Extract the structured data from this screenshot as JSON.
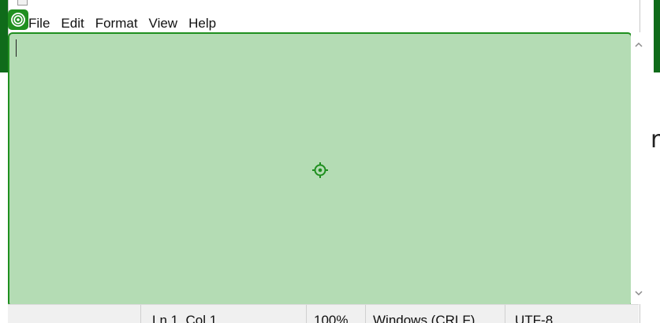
{
  "menu": {
    "file": "File",
    "edit": "Edit",
    "format": "Format",
    "view": "View",
    "help": "Help"
  },
  "editor": {
    "text": ""
  },
  "status": {
    "position": "Ln 1, Col 1",
    "zoom": "100%",
    "line_endings": "Windows (CRLF)",
    "encoding": "UTF-8"
  },
  "background_app": {
    "partial_char": "r"
  },
  "colors": {
    "highlight_fill": "#b4dcb4",
    "highlight_border": "#1f8f1f",
    "desktop_green": "#0f6b1a"
  },
  "icons": {
    "target_badge": "target-icon",
    "crosshair": "crosshair-icon",
    "scroll_up": "chevron-up-icon",
    "scroll_down": "chevron-down-icon"
  }
}
